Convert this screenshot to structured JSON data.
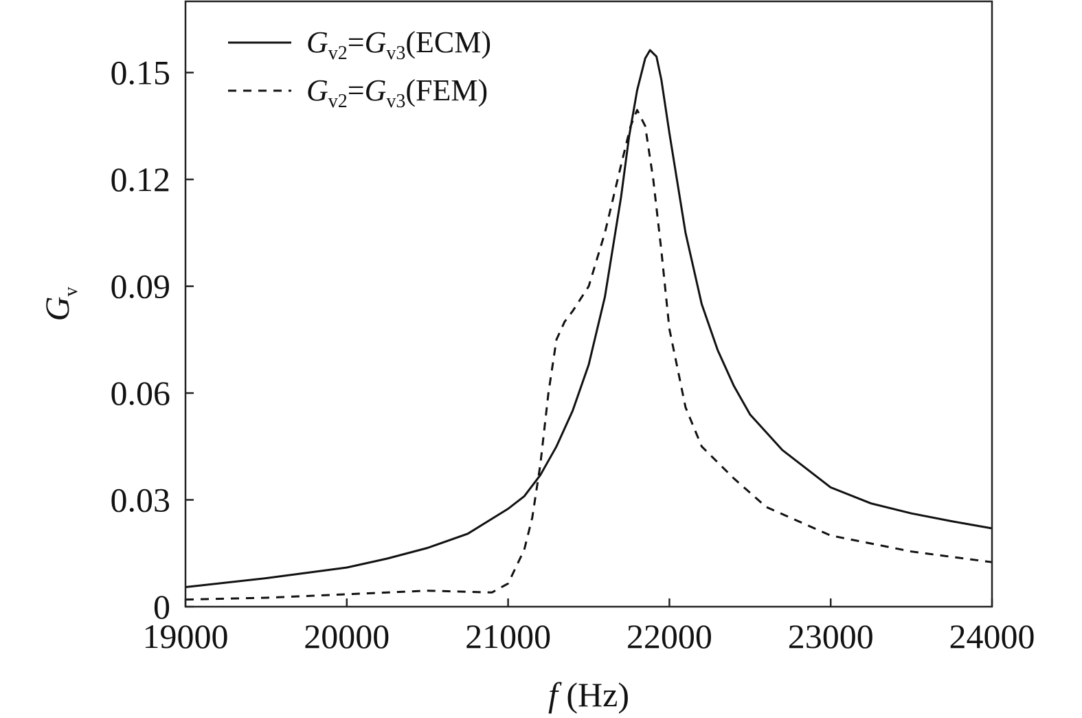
{
  "chart_data": {
    "type": "line",
    "xlabel": {
      "var": "f",
      "unit": " (Hz)"
    },
    "ylabel": {
      "var": "G",
      "sub": "v"
    },
    "xlim": [
      19000,
      24000
    ],
    "ylim": [
      0,
      0.17
    ],
    "xticks": [
      19000,
      20000,
      21000,
      22000,
      23000,
      24000
    ],
    "xtick_labels": [
      "19000",
      "20000",
      "21000",
      "22000",
      "23000",
      "24000"
    ],
    "yticks": [
      0,
      0.03,
      0.06,
      0.09,
      0.12,
      0.15
    ],
    "ytick_labels": [
      "0",
      "0.03",
      "0.06",
      "0.09",
      "0.12",
      "0.15"
    ],
    "grid": false,
    "legend_position": "top-left",
    "series": [
      {
        "name": "Gv2=Gv3(ECM)",
        "legend": {
          "g1": "G",
          "s1": "v2",
          "eq": "=",
          "g2": "G",
          "s2": "v3",
          "tail": "(ECM)"
        },
        "style": "solid",
        "color": "#111111",
        "points": [
          [
            19000,
            0.0055
          ],
          [
            19500,
            0.008
          ],
          [
            20000,
            0.011
          ],
          [
            20250,
            0.0135
          ],
          [
            20500,
            0.0165
          ],
          [
            20750,
            0.0205
          ],
          [
            21000,
            0.0275
          ],
          [
            21100,
            0.031
          ],
          [
            21200,
            0.037
          ],
          [
            21300,
            0.045
          ],
          [
            21400,
            0.055
          ],
          [
            21500,
            0.068
          ],
          [
            21600,
            0.087
          ],
          [
            21700,
            0.115
          ],
          [
            21750,
            0.132
          ],
          [
            21800,
            0.145
          ],
          [
            21850,
            0.154
          ],
          [
            21880,
            0.1563
          ],
          [
            21920,
            0.1545
          ],
          [
            21950,
            0.148
          ],
          [
            22000,
            0.133
          ],
          [
            22100,
            0.105
          ],
          [
            22200,
            0.085
          ],
          [
            22300,
            0.072
          ],
          [
            22400,
            0.062
          ],
          [
            22500,
            0.054
          ],
          [
            22700,
            0.044
          ],
          [
            23000,
            0.0335
          ],
          [
            23250,
            0.029
          ],
          [
            23500,
            0.0262
          ],
          [
            23750,
            0.024
          ],
          [
            24000,
            0.022
          ]
        ]
      },
      {
        "name": "Gv2=Gv3(FEM)",
        "legend": {
          "g1": "G",
          "s1": "v2",
          "eq": "=",
          "g2": "G",
          "s2": "v3",
          "tail": "(FEM)"
        },
        "style": "dashed",
        "color": "#111111",
        "points": [
          [
            19000,
            0.002
          ],
          [
            19500,
            0.0025
          ],
          [
            20000,
            0.0035
          ],
          [
            20500,
            0.0045
          ],
          [
            20900,
            0.004
          ],
          [
            21000,
            0.0065
          ],
          [
            21100,
            0.016
          ],
          [
            21150,
            0.025
          ],
          [
            21200,
            0.04
          ],
          [
            21250,
            0.06
          ],
          [
            21300,
            0.075
          ],
          [
            21350,
            0.08
          ],
          [
            21400,
            0.083
          ],
          [
            21500,
            0.09
          ],
          [
            21600,
            0.105
          ],
          [
            21700,
            0.124
          ],
          [
            21760,
            0.135
          ],
          [
            21800,
            0.1395
          ],
          [
            21850,
            0.135
          ],
          [
            21900,
            0.12
          ],
          [
            21950,
            0.1
          ],
          [
            22000,
            0.078
          ],
          [
            22100,
            0.056
          ],
          [
            22200,
            0.045
          ],
          [
            22400,
            0.036
          ],
          [
            22600,
            0.028
          ],
          [
            23000,
            0.02
          ],
          [
            23500,
            0.0155
          ],
          [
            24000,
            0.0125
          ]
        ]
      }
    ]
  }
}
